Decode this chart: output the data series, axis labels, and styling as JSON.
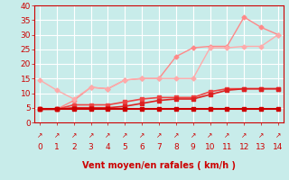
{
  "xlabel": "Vent moyen/en rafales ( km/h )",
  "xlim": [
    -0.3,
    14.3
  ],
  "ylim": [
    0,
    40
  ],
  "yticks": [
    0,
    5,
    10,
    15,
    20,
    25,
    30,
    35,
    40
  ],
  "xticks": [
    0,
    1,
    2,
    3,
    4,
    5,
    6,
    7,
    8,
    9,
    10,
    11,
    12,
    13,
    14
  ],
  "background_color": "#c8ecea",
  "grid_color": "#b0ddd8",
  "lines": [
    {
      "x": [
        0,
        1,
        2,
        3,
        4,
        5,
        6,
        7,
        8,
        9,
        10,
        11,
        12,
        13,
        14
      ],
      "y": [
        4.5,
        4.5,
        4.5,
        4.5,
        4.5,
        4.5,
        4.5,
        4.5,
        4.5,
        4.5,
        4.5,
        4.5,
        4.5,
        4.5,
        4.5
      ],
      "color": "#cc0000",
      "marker": "s",
      "markersize": 2.5,
      "linewidth": 1.5,
      "zorder": 5
    },
    {
      "x": [
        0,
        1,
        2,
        3,
        4,
        5,
        6,
        7,
        8,
        9,
        10,
        11,
        12,
        13,
        14
      ],
      "y": [
        4.5,
        4.5,
        5.0,
        5.0,
        5.0,
        5.5,
        6.5,
        7.5,
        8.0,
        8.0,
        9.5,
        11.0,
        11.5,
        11.5,
        11.5
      ],
      "color": "#dd2222",
      "marker": "s",
      "markersize": 2.5,
      "linewidth": 1.2,
      "zorder": 4
    },
    {
      "x": [
        0,
        1,
        2,
        3,
        4,
        5,
        6,
        7,
        8,
        9,
        10,
        11,
        12,
        13,
        14
      ],
      "y": [
        4.5,
        4.5,
        6.0,
        6.0,
        6.0,
        7.0,
        8.0,
        8.5,
        8.5,
        8.5,
        10.5,
        11.5,
        11.5,
        11.5,
        11.5
      ],
      "color": "#ee4444",
      "marker": "s",
      "markersize": 2.5,
      "linewidth": 1.2,
      "zorder": 3
    },
    {
      "x": [
        0,
        1,
        2,
        3,
        4,
        5,
        6,
        7,
        8,
        9,
        10,
        11,
        12,
        13,
        14
      ],
      "y": [
        14.5,
        11.0,
        8.0,
        12.0,
        11.5,
        14.5,
        15.0,
        15.0,
        15.0,
        15.0,
        25.5,
        25.5,
        26.0,
        26.0,
        30.0
      ],
      "color": "#ffaaaa",
      "marker": "D",
      "markersize": 2.5,
      "linewidth": 1.0,
      "zorder": 2
    },
    {
      "x": [
        0,
        1,
        2,
        3,
        4,
        5,
        6,
        7,
        8,
        9,
        10,
        11,
        12,
        13,
        14
      ],
      "y": [
        4.5,
        4.5,
        7.5,
        12.0,
        11.5,
        14.5,
        15.0,
        15.0,
        22.5,
        25.5,
        26.0,
        26.0,
        36.0,
        32.5,
        30.0
      ],
      "color": "#ff8888",
      "marker": "D",
      "markersize": 2.5,
      "linewidth": 1.0,
      "zorder": 1
    }
  ],
  "wind_arrow_char": "↗",
  "spine_color": "#cc0000",
  "tick_color": "#cc0000",
  "label_color": "#cc0000"
}
